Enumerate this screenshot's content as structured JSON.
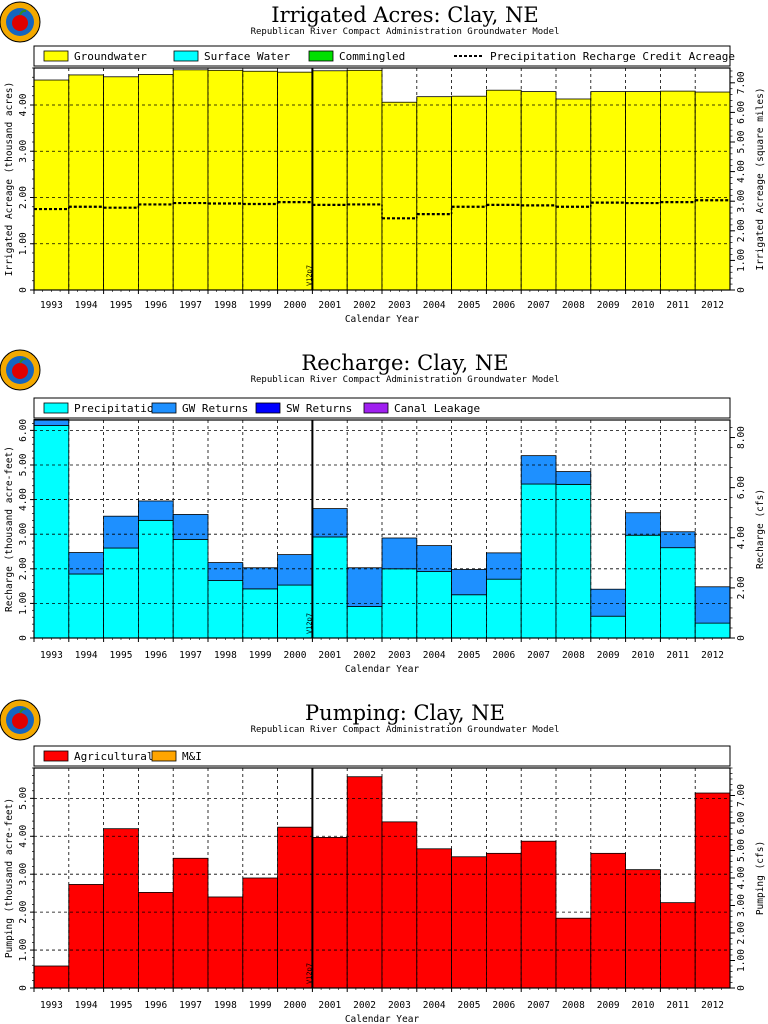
{
  "chart_data": [
    {
      "type": "bar",
      "stacked": true,
      "title": "Irrigated Acres: Clay, NE",
      "subtitle": "Republican River Compact Administration Groundwater Model",
      "xlabel": "Calendar Year",
      "ylabel": "Irrigated Acreage (thousand acres)",
      "y2label": "Irrigated Acreage (square miles)",
      "categories": [
        "1993",
        "1994",
        "1995",
        "1996",
        "1997",
        "1998",
        "1999",
        "2000",
        "2001",
        "2002",
        "2003",
        "2004",
        "2005",
        "2006",
        "2007",
        "2008",
        "2009",
        "2010",
        "2011",
        "2012"
      ],
      "ylim": [
        0,
        4.8
      ],
      "yticks": [
        0,
        1,
        2,
        3,
        4
      ],
      "yticklabels": [
        "0",
        "1.00",
        "2.00",
        "3.00",
        "4.00"
      ],
      "y2lim": [
        0,
        7.5
      ],
      "y2ticks": [
        0,
        1,
        2,
        3,
        4,
        5,
        6,
        7
      ],
      "y2ticklabels": [
        "0",
        "1.00",
        "2.00",
        "3.00",
        "4.00",
        "5.00",
        "6.00",
        "7.00"
      ],
      "grid": true,
      "legend_position": "top",
      "marker": {
        "label": "V12p7",
        "x_after_index": 7
      },
      "series": [
        {
          "name": "Groundwater",
          "kind": "bar",
          "color": "#ffff00",
          "values": [
            4.54,
            4.65,
            4.61,
            4.66,
            4.76,
            4.75,
            4.73,
            4.71,
            4.74,
            4.75,
            4.06,
            4.18,
            4.19,
            4.32,
            4.29,
            4.13,
            4.29,
            4.29,
            4.3,
            4.28
          ]
        },
        {
          "name": "Surface Water",
          "kind": "bar",
          "color": "#00ffff",
          "values": [
            0,
            0,
            0,
            0,
            0,
            0,
            0,
            0,
            0,
            0,
            0,
            0,
            0,
            0,
            0,
            0,
            0,
            0,
            0,
            0
          ]
        },
        {
          "name": "Commingled",
          "kind": "bar",
          "color": "#00e000",
          "values": [
            0,
            0,
            0,
            0,
            0,
            0,
            0,
            0,
            0,
            0,
            0,
            0,
            0,
            0,
            0,
            0,
            0,
            0,
            0,
            0
          ]
        },
        {
          "name": "Precipitation Recharge Credit Acreage",
          "kind": "step",
          "color": "#000000",
          "values": [
            1.75,
            1.8,
            1.78,
            1.85,
            1.88,
            1.87,
            1.86,
            1.9,
            1.84,
            1.85,
            1.55,
            1.64,
            1.8,
            1.84,
            1.83,
            1.8,
            1.89,
            1.88,
            1.9,
            1.94
          ]
        }
      ]
    },
    {
      "type": "bar",
      "stacked": true,
      "title": "Recharge: Clay, NE",
      "subtitle": "Republican River Compact Administration Groundwater Model",
      "xlabel": "Calendar Year",
      "ylabel": "Recharge (thousand acre-feet)",
      "y2label": "Recharge (cfs)",
      "categories": [
        "1993",
        "1994",
        "1995",
        "1996",
        "1997",
        "1998",
        "1999",
        "2000",
        "2001",
        "2002",
        "2003",
        "2004",
        "2005",
        "2006",
        "2007",
        "2008",
        "2009",
        "2010",
        "2011",
        "2012"
      ],
      "ylim": [
        0,
        6.3
      ],
      "yticks": [
        0,
        1,
        2,
        3,
        4,
        5,
        6
      ],
      "yticklabels": [
        "0",
        "1.00",
        "2.00",
        "3.00",
        "4.00",
        "5.00",
        "6.00"
      ],
      "y2lim": [
        0,
        8.7
      ],
      "y2ticks": [
        0,
        2,
        4,
        6,
        8
      ],
      "y2ticklabels": [
        "0",
        "2.00",
        "4.00",
        "6.00",
        "8.00"
      ],
      "grid": true,
      "legend_position": "top",
      "marker": {
        "label": "V12p7",
        "x_after_index": 7
      },
      "series": [
        {
          "name": "Precipitation",
          "kind": "bar",
          "color": "#00ffff",
          "values": [
            6.14,
            1.85,
            2.6,
            3.4,
            2.85,
            1.66,
            1.42,
            1.53,
            2.92,
            0.91,
            2.0,
            1.92,
            1.25,
            1.7,
            4.45,
            4.44,
            0.63,
            2.97,
            2.61,
            0.43
          ]
        },
        {
          "name": "GW Returns",
          "kind": "bar",
          "color": "#1e90ff",
          "values": [
            0.18,
            0.62,
            0.92,
            0.56,
            0.72,
            0.52,
            0.61,
            0.88,
            0.82,
            1.12,
            0.89,
            0.75,
            0.73,
            0.76,
            0.82,
            0.37,
            0.78,
            0.65,
            0.46,
            1.05
          ]
        },
        {
          "name": "SW Returns",
          "kind": "bar",
          "color": "#0000ff",
          "values": [
            0,
            0,
            0,
            0,
            0,
            0,
            0,
            0,
            0,
            0,
            0,
            0,
            0,
            0,
            0,
            0,
            0,
            0,
            0,
            0
          ]
        },
        {
          "name": "Canal Leakage",
          "kind": "bar",
          "color": "#a020f0",
          "values": [
            0,
            0,
            0,
            0,
            0,
            0,
            0,
            0,
            0,
            0,
            0,
            0,
            0,
            0,
            0,
            0,
            0,
            0,
            0,
            0
          ]
        }
      ]
    },
    {
      "type": "bar",
      "stacked": true,
      "title": "Pumping: Clay, NE",
      "subtitle": "Republican River Compact Administration Groundwater Model",
      "xlabel": "Calendar Year",
      "ylabel": "Pumping (thousand acre-feet)",
      "y2label": "Pumping (cfs)",
      "categories": [
        "1993",
        "1994",
        "1995",
        "1996",
        "1997",
        "1998",
        "1999",
        "2000",
        "2001",
        "2002",
        "2003",
        "2004",
        "2005",
        "2006",
        "2007",
        "2008",
        "2009",
        "2010",
        "2011",
        "2012"
      ],
      "ylim": [
        0,
        5.8
      ],
      "yticks": [
        0,
        1,
        2,
        3,
        4,
        5
      ],
      "yticklabels": [
        "0",
        "1.00",
        "2.00",
        "3.00",
        "4.00",
        "5.00"
      ],
      "y2lim": [
        0,
        8.0
      ],
      "y2ticks": [
        0,
        1,
        2,
        3,
        4,
        5,
        6,
        7
      ],
      "y2ticklabels": [
        "0",
        "1.00",
        "2.00",
        "3.00",
        "4.00",
        "5.00",
        "6.00",
        "7.00"
      ],
      "grid": true,
      "legend_position": "top",
      "marker": {
        "label": "V12p7",
        "x_after_index": 7
      },
      "series": [
        {
          "name": "Agricultural",
          "kind": "bar",
          "color": "#ff0000",
          "values": [
            0.58,
            2.73,
            4.2,
            2.52,
            3.42,
            2.4,
            2.9,
            4.24,
            3.97,
            5.57,
            4.38,
            3.67,
            3.46,
            3.55,
            3.87,
            1.84,
            3.55,
            3.12,
            2.25,
            5.14
          ]
        },
        {
          "name": "M&I",
          "kind": "bar",
          "color": "#ffa500",
          "values": [
            0,
            0,
            0,
            0,
            0,
            0,
            0,
            0,
            0,
            0,
            0,
            0,
            0,
            0,
            0,
            0,
            0,
            0,
            0,
            0
          ]
        }
      ]
    }
  ]
}
